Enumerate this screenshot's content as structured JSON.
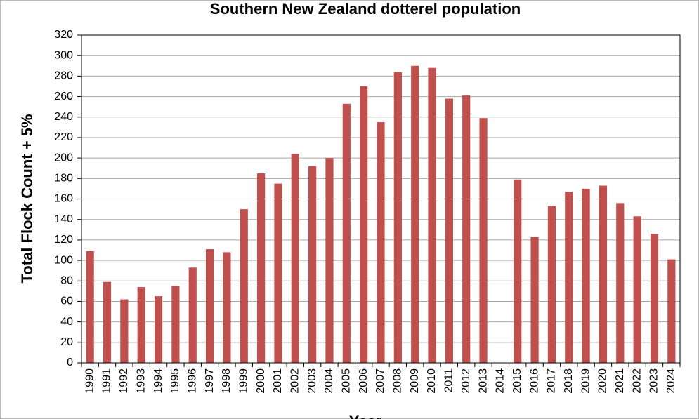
{
  "chart_data": {
    "type": "bar",
    "title": "Southern New Zealand dotterel population",
    "y_label": "Total Flock Count + 5%",
    "x_label": "Year",
    "categories": [
      "1990",
      "1991",
      "1992",
      "1993",
      "1994",
      "1995",
      "1996",
      "1997",
      "1998",
      "1999",
      "2000",
      "2001",
      "2002",
      "2003",
      "2004",
      "2005",
      "2006",
      "2007",
      "2008",
      "2009",
      "2010",
      "2011",
      "2012",
      "2013",
      "2014",
      "2015",
      "2016",
      "2017",
      "2018",
      "2019",
      "2020",
      "2021",
      "2022",
      "2023",
      "2024"
    ],
    "values": [
      109,
      79,
      62,
      74,
      65,
      75,
      93,
      111,
      108,
      150,
      185,
      175,
      204,
      192,
      200,
      253,
      270,
      235,
      284,
      290,
      288,
      258,
      261,
      239,
      null,
      179,
      123,
      153,
      167,
      170,
      173,
      156,
      143,
      126,
      101
    ],
    "color": "#c0504d",
    "ylim": [
      0,
      320
    ],
    "yticks": [
      0,
      20,
      40,
      60,
      80,
      100,
      120,
      140,
      160,
      180,
      200,
      220,
      240,
      260,
      280,
      300,
      320
    ],
    "grid": true
  }
}
